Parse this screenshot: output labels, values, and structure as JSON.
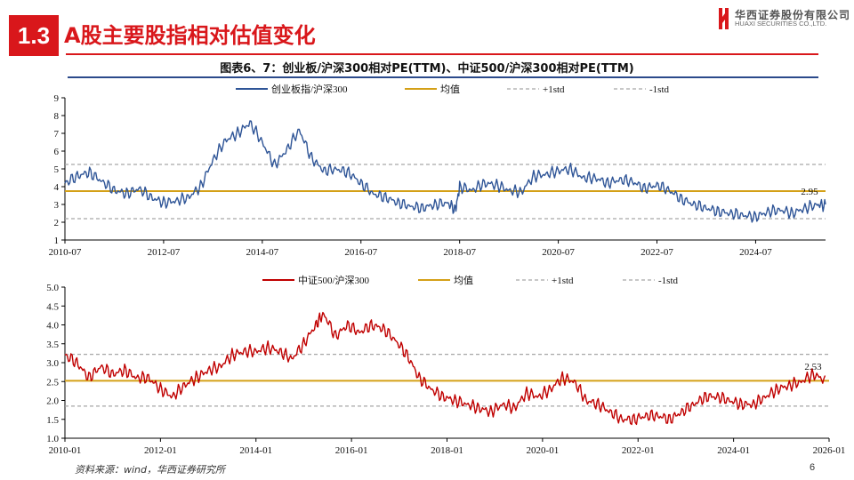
{
  "header": {
    "section_number": "1.3",
    "section_title": "A股主要股指相对估值变化",
    "logo_cn": "华西证券股份有限公司",
    "logo_en": "HUAXI SECURITIES CO.,LTD."
  },
  "figure_title": "图表6、7：创业板/沪深300相对PE(TTM)、中证500/沪深300相对PE(TTM)",
  "footer": {
    "source": "资料来源：wind，华西证券研究所",
    "page": "6"
  },
  "colors": {
    "brand_red": "#d9171b",
    "series1": "#2f5597",
    "series2": "#c00000",
    "mean": "#d4a017",
    "std": "#a6a6a6"
  },
  "chart_data": [
    {
      "type": "line",
      "x_start": "2010-07",
      "x_end": "2025-12",
      "x_ticks": [
        "2010-07",
        "2012-07",
        "2014-07",
        "2016-07",
        "2018-07",
        "2020-07",
        "2022-07",
        "2024-07"
      ],
      "y_ticks": [
        "1",
        "2",
        "3",
        "4",
        "5",
        "6",
        "7",
        "8",
        "9"
      ],
      "ylim": [
        1,
        9
      ],
      "legend": [
        "创业板指/沪深300",
        "均值",
        "+1std",
        "-1std"
      ],
      "mean": 3.75,
      "plus_1std": 5.25,
      "minus_1std": 2.2,
      "last_value_label": "2.95",
      "series": [
        {
          "name": "创业板指/沪深300",
          "dates": [
            "2010-07",
            "2010-10",
            "2011-01",
            "2011-04",
            "2011-07",
            "2011-10",
            "2012-01",
            "2012-04",
            "2012-07",
            "2012-10",
            "2013-01",
            "2013-04",
            "2013-07",
            "2013-10",
            "2014-01",
            "2014-04",
            "2014-07",
            "2014-10",
            "2015-01",
            "2015-04",
            "2015-07",
            "2015-10",
            "2016-01",
            "2016-04",
            "2016-07",
            "2016-10",
            "2017-01",
            "2017-04",
            "2017-07",
            "2017-10",
            "2018-01",
            "2018-04",
            "2018-06",
            "2018-07",
            "2018-10",
            "2019-01",
            "2019-04",
            "2019-07",
            "2019-10",
            "2020-01",
            "2020-04",
            "2020-07",
            "2020-10",
            "2021-01",
            "2021-04",
            "2021-07",
            "2021-10",
            "2022-01",
            "2022-04",
            "2022-07",
            "2022-10",
            "2023-01",
            "2023-04",
            "2023-07",
            "2023-10",
            "2024-01",
            "2024-04",
            "2024-07",
            "2024-10",
            "2025-01",
            "2025-04",
            "2025-07",
            "2025-10",
            "2025-12"
          ],
          "values": [
            4.2,
            4.6,
            4.8,
            4.3,
            3.8,
            3.6,
            3.9,
            3.4,
            3.1,
            3.2,
            3.4,
            4.0,
            5.5,
            6.6,
            7.0,
            7.6,
            6.5,
            5.2,
            6.1,
            7.2,
            5.6,
            4.9,
            5.0,
            4.8,
            4.2,
            3.6,
            3.4,
            3.1,
            2.9,
            2.8,
            3.0,
            3.1,
            2.7,
            4.0,
            3.8,
            4.2,
            4.1,
            3.8,
            3.7,
            4.6,
            4.7,
            4.9,
            5.0,
            4.5,
            4.5,
            4.2,
            4.4,
            4.3,
            3.9,
            4.1,
            3.8,
            3.3,
            3.0,
            2.8,
            2.6,
            2.5,
            2.4,
            2.3,
            2.6,
            2.7,
            2.5,
            2.8,
            3.0,
            2.95
          ]
        }
      ]
    },
    {
      "type": "line",
      "x_start": "2010-01",
      "x_end": "2026-01",
      "x_ticks": [
        "2010-01",
        "2012-01",
        "2014-01",
        "2016-01",
        "2018-01",
        "2020-01",
        "2022-01",
        "2024-01",
        "2026-01"
      ],
      "y_ticks": [
        "1.0",
        "1.5",
        "2.0",
        "2.5",
        "3.0",
        "3.5",
        "4.0",
        "4.5",
        "5.0"
      ],
      "ylim": [
        1.0,
        5.0
      ],
      "legend": [
        "中证500/沪深300",
        "均值",
        "+1std",
        "-1std"
      ],
      "mean": 2.52,
      "plus_1std": 3.22,
      "minus_1std": 1.85,
      "last_value_label": "2.53",
      "series": [
        {
          "name": "中证500/沪深300",
          "dates": [
            "2010-01",
            "2010-04",
            "2010-07",
            "2010-10",
            "2011-01",
            "2011-04",
            "2011-07",
            "2011-10",
            "2012-01",
            "2012-04",
            "2012-07",
            "2012-10",
            "2013-01",
            "2013-04",
            "2013-07",
            "2013-10",
            "2014-01",
            "2014-04",
            "2014-07",
            "2014-10",
            "2015-01",
            "2015-04",
            "2015-06",
            "2015-09",
            "2015-12",
            "2016-03",
            "2016-06",
            "2016-09",
            "2016-12",
            "2017-03",
            "2017-06",
            "2017-09",
            "2017-12",
            "2018-03",
            "2018-06",
            "2018-09",
            "2018-12",
            "2019-03",
            "2019-06",
            "2019-09",
            "2019-12",
            "2020-03",
            "2020-06",
            "2020-09",
            "2020-12",
            "2021-03",
            "2021-06",
            "2021-09",
            "2021-12",
            "2022-03",
            "2022-06",
            "2022-09",
            "2022-12",
            "2023-03",
            "2023-06",
            "2023-09",
            "2023-12",
            "2024-03",
            "2024-06",
            "2024-09",
            "2024-12",
            "2025-03",
            "2025-06",
            "2025-09",
            "2025-12"
          ],
          "values": [
            3.2,
            3.0,
            2.6,
            2.9,
            2.7,
            2.8,
            2.6,
            2.6,
            2.3,
            2.1,
            2.4,
            2.6,
            2.8,
            2.9,
            3.2,
            3.3,
            3.3,
            3.4,
            3.3,
            3.1,
            3.5,
            4.0,
            4.3,
            3.7,
            4.0,
            3.8,
            4.0,
            3.9,
            3.6,
            3.2,
            2.6,
            2.3,
            2.1,
            2.0,
            1.9,
            1.8,
            1.7,
            1.9,
            1.8,
            2.2,
            2.1,
            2.3,
            2.6,
            2.5,
            2.0,
            1.9,
            1.7,
            1.5,
            1.5,
            1.6,
            1.6,
            1.5,
            1.7,
            1.9,
            2.1,
            2.1,
            2.0,
            1.9,
            1.9,
            2.1,
            2.3,
            2.4,
            2.5,
            2.7,
            2.53
          ]
        }
      ]
    }
  ]
}
